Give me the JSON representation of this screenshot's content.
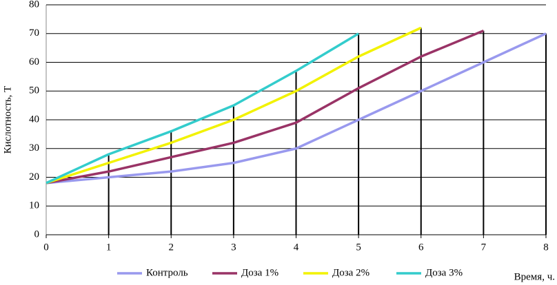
{
  "chart_data": {
    "type": "line",
    "x_label": "Время, ч.",
    "y_label": "Кислотность, Т",
    "x": [
      0,
      1,
      2,
      3,
      4,
      5,
      6,
      7,
      8
    ],
    "series": [
      {
        "name": "Контроль",
        "color": "#9999ee",
        "values": [
          18,
          20,
          22,
          25,
          30,
          40,
          50,
          60,
          70
        ]
      },
      {
        "name": "Доза 1%",
        "color": "#993366",
        "values": [
          18,
          22,
          27,
          32,
          39,
          51,
          62,
          71,
          null
        ]
      },
      {
        "name": "Доза 2%",
        "color": "#f2f200",
        "values": [
          18,
          25,
          32,
          40,
          50,
          62,
          72,
          null,
          null
        ]
      },
      {
        "name": "Доза 3%",
        "color": "#33cccc",
        "values": [
          18,
          28,
          36,
          45,
          57,
          70,
          null,
          null,
          null
        ]
      }
    ],
    "xlim": [
      0,
      8
    ],
    "xticks": [
      0,
      1,
      2,
      3,
      4,
      5,
      6,
      7,
      8
    ],
    "ylim": [
      0,
      80
    ],
    "yticks": [
      0,
      10,
      20,
      30,
      40,
      50,
      60,
      70,
      80
    ],
    "grid": true,
    "drop_lines": true,
    "legend": "bottom"
  }
}
